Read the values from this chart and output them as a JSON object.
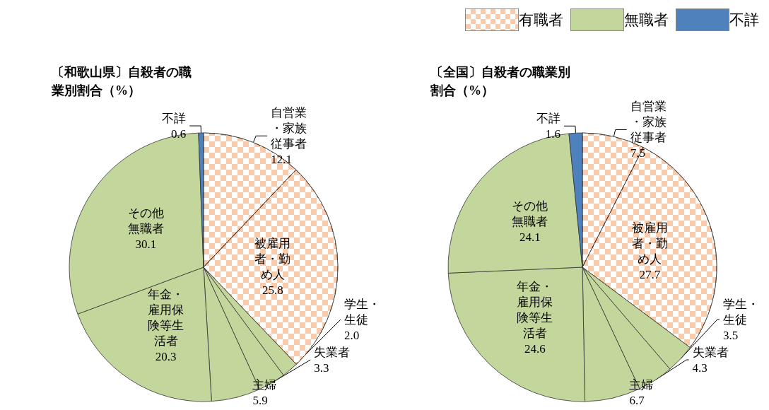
{
  "chart_data": [
    {
      "type": "pie",
      "title": "〔和歌山県〕自殺者の職業別割合（%）",
      "categories": [
        "自営業・家族従事者",
        "被雇用者・勤め人",
        "学生・生徒",
        "失業者",
        "主婦",
        "年金・雇用保険等生活者",
        "その他無職者",
        "不詳"
      ],
      "values": [
        12.1,
        25.8,
        2.0,
        3.3,
        5.9,
        20.3,
        30.1,
        0.6
      ],
      "value_labels": [
        "12.1",
        "25.8",
        "2.0",
        "3.3",
        "5.9",
        "20.3",
        "30.1",
        "0.6"
      ],
      "colors": [
        "#f8cbad",
        "#f8cbad",
        "#c3d69b",
        "#c3d69b",
        "#c3d69b",
        "#c3d69b",
        "#c3d69b",
        "#4f81bd"
      ],
      "data_labels": true,
      "legend": false
    },
    {
      "type": "pie",
      "title": "〔全国〕自殺者の職業別割合（%）",
      "categories": [
        "自営業・家族従事者",
        "被雇用者・勤め人",
        "学生・生徒",
        "失業者",
        "主婦",
        "年金・雇用保険等生活者",
        "その他無職者",
        "不詳"
      ],
      "values": [
        7.5,
        27.7,
        3.5,
        4.3,
        6.7,
        24.6,
        24.1,
        1.6
      ],
      "value_labels": [
        "7.5",
        "27.7",
        "3.5",
        "4.3",
        "6.7",
        "24.6",
        "24.1",
        "1.6"
      ],
      "colors": [
        "#f8cbad",
        "#f8cbad",
        "#c3d69b",
        "#c3d69b",
        "#c3d69b",
        "#c3d69b",
        "#c3d69b",
        "#4f81bd"
      ],
      "data_labels": true,
      "legend": "top right",
      "annotations": [
        "有職者",
        "無職者",
        "不詳"
      ]
    }
  ]
}
